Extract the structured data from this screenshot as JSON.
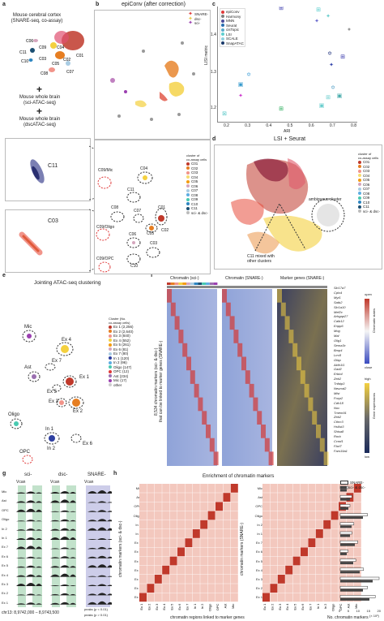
{
  "panels": {
    "a": {
      "letter": "a",
      "top_text": [
        "Mouse cerebral cortex",
        "(SNARE-seq, co-assay)"
      ],
      "plus1": "+",
      "mid_text": [
        "Mouse whole brain",
        "(sci-ATAC-seq)"
      ],
      "plus2": "+",
      "bot_text": [
        "Mouse whole brain",
        "(dscATAC-seq)"
      ],
      "clusters": [
        "C06",
        "C11",
        "C10",
        "C09",
        "C03",
        "C04",
        "C01",
        "C02",
        "C05",
        "C08",
        "C07"
      ],
      "zoom1": "C11",
      "zoom2": "C03"
    },
    "b": {
      "letter": "b",
      "title": "epiConv (after correction)",
      "legend": [
        {
          "label": "SNARE-",
          "color": "#e03a3a"
        },
        {
          "label": "dsc-",
          "color": "#e8c84a"
        },
        {
          "label": "sci-",
          "color": "#9b3fb0"
        }
      ],
      "legend_title": [
        "cluster of",
        "co-assay cells"
      ],
      "clusters": [
        {
          "label": "C01",
          "color": "#c0392b"
        },
        {
          "label": "C02",
          "color": "#e67e22"
        },
        {
          "label": "C03",
          "color": "#f1948a"
        },
        {
          "label": "C04",
          "color": "#f7dc6f"
        },
        {
          "label": "C05",
          "color": "#f39c12"
        },
        {
          "label": "C06",
          "color": "#d5a6bd"
        },
        {
          "label": "C07",
          "color": "#a9cce3"
        },
        {
          "label": "C08",
          "color": "#5dade2"
        },
        {
          "label": "C09",
          "color": "#48c9b0"
        },
        {
          "label": "C10",
          "color": "#2e86c1"
        },
        {
          "label": "C11",
          "color": "#1b4f72"
        },
        {
          "label": "sci- & dsc-",
          "color": "#bbbbbb"
        }
      ],
      "annotations": [
        "C09/Mic",
        "C04",
        "C11",
        "C01",
        "C08",
        "C07",
        "C02",
        "C05",
        "C09/Oligo",
        "C06",
        "C03",
        "C09/OPC",
        "C10"
      ]
    },
    "c": {
      "letter": "c",
      "xlabel": "ARI",
      "ylabel": "LISI metric",
      "xticks": [
        "0.2",
        "0.3",
        "0.4",
        "0.5",
        "0.6",
        "0.7",
        "0.8"
      ],
      "yticks": [
        "1.2",
        "1.3",
        "1.4"
      ],
      "legend": [
        "epiConv",
        "Harmony",
        "MNN",
        "Seurat",
        "cisTopic",
        "LSI",
        "SCALE",
        "SnapATAC"
      ]
    },
    "d": {
      "letter": "d",
      "title": "LSI + Seurat",
      "legend_title": [
        "cluster of",
        "co-assay cells"
      ],
      "clusters": [
        "C01",
        "C02",
        "C03",
        "C04",
        "C05",
        "C06",
        "C07",
        "C08",
        "C09",
        "C10",
        "C11",
        "sci- & dsc-"
      ],
      "note1": "ambiguous cluster",
      "note2": [
        "C11 mixed with",
        "other clusters"
      ]
    },
    "e": {
      "letter": "e",
      "title": "Jointing ATAC-seq clustering",
      "legend_title": [
        "Cluster (No.",
        "co-assay cells)"
      ],
      "legend": [
        "Ex 1 (2,256)",
        "Ex 2 (2,640)",
        "Ex 3 (840)",
        "Ex 4 (552)",
        "Ex 5 (261)",
        "Ex 6 (81)",
        "Ex 7 (80)",
        "In 1 (120)",
        "In 2 (96)",
        "Oligo (147)",
        "OPC (12)",
        "Ast (234)",
        "Mic (17)",
        "other"
      ],
      "labels": [
        "Mic",
        "Ex 4",
        "Ex 7",
        "Ex 1",
        "Ast",
        "Ex 5",
        "Ex 3",
        "Ex 2",
        "Oligo",
        "In 1",
        "In 2",
        "Ex 6",
        "OPC"
      ]
    },
    "f": {
      "letter": "f",
      "h1": "Chromatin (sci-)",
      "h2": "Chromatin (SNARE-)",
      "h3": "Marker genes (SNARE-)",
      "ylabel": [
        "8,534 chromatin markers (sci- & dsc-)",
        "that can be linked to marker genes (SNARE-)"
      ],
      "genes": [
        "Slc17a7",
        "Cplx4",
        "Myt1",
        "Satb2",
        "Slc1a10",
        "Mef2c",
        "Arhgap27",
        "Calb12",
        "Enpp6",
        "Mog",
        "Mal",
        "Olig1",
        "Sema3c",
        "Bmp4",
        "Lrrc8",
        "Gfap",
        "Aldh1l1",
        "Gad2",
        "Erbb4",
        "Zeb2",
        "Tnfaip3",
        "Neurod2",
        "Mlst",
        "Foxp2",
        "Cdh18",
        "Nov",
        "Tmem91",
        "Zeb2",
        "Cthrc3",
        "Hs6st3",
        "Shisa8",
        "Rorb",
        "Ccnd1",
        "Fbxl7",
        "Fam19a1"
      ],
      "scale1": {
        "title": "Chromatin states",
        "top": "open",
        "bottom": "close"
      },
      "scale2": {
        "title": "Gene expressions",
        "top": "high",
        "bottom": "low"
      }
    },
    "g": {
      "letter": "g",
      "cols": [
        "sci-",
        "dsc-",
        "SNARE-"
      ],
      "gene": "Vcan",
      "rows": [
        "Mic",
        "Ast",
        "OPC",
        "Oligo",
        "In 2",
        "In 1",
        "Ex 7",
        "Ex 6",
        "Ex 5",
        "Ex 4",
        "Ex 3",
        "Ex 2",
        "Ex 1"
      ],
      "region": "chr13: 8,9742,000 – 8,9743,500",
      "peaks1": "peaks (p < 0.01)",
      "peaks2": "peaks (p > 0.01)"
    },
    "h": {
      "letter": "h",
      "title": "Enrichment of chromatin markers",
      "ylabel1": "chromatin markers (sci- & dsc-)",
      "ylabel2": "chromatin markers (SNARE-)",
      "xlabel": "chromatin regions linked to marker genes",
      "xlabel2": "No. chromatin markers",
      "rows": [
        "Mic",
        "Ast",
        "OPC",
        "Oligo",
        "In 2",
        "In 1",
        "Ex 7",
        "Ex 6",
        "Ex 5",
        "Ex 4",
        "Ex 3",
        "Ex 2",
        "Ex 1"
      ],
      "cols": [
        "Ex 1",
        "Ex 2",
        "Ex 3",
        "Ex 4",
        "Ex 5",
        "Ex 6",
        "Ex 7",
        "In 1",
        "In 2",
        "Oligo",
        "OPC",
        "Ast",
        "Mic"
      ],
      "bar_legend": [
        "SNARE-",
        "sci- & dsc-"
      ],
      "bar_ticks": [
        "0",
        "5",
        "10",
        "15",
        "20"
      ],
      "bar_unit": "(× 10²)"
    }
  },
  "colors": {
    "red": "#c0392b",
    "orange": "#e67e22",
    "yellow": "#f4d03f",
    "blue": "#3b4cc0",
    "green_track": "#a8d5b5",
    "lav_track": "#b8b8e0"
  }
}
